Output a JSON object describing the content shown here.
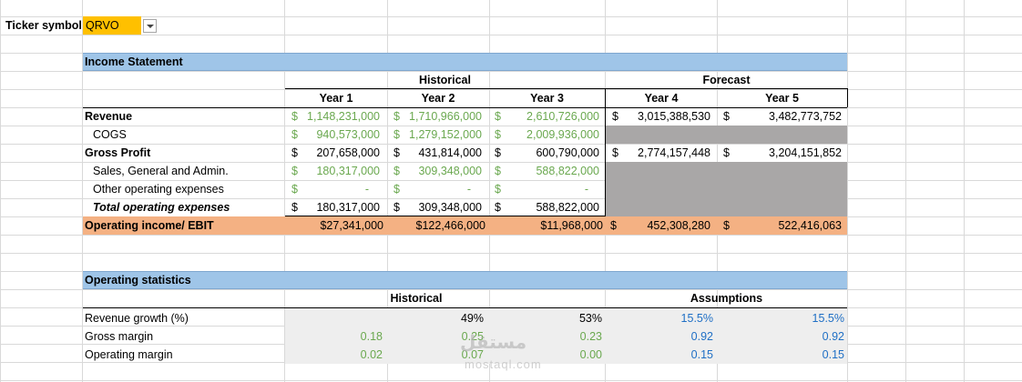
{
  "ticker": {
    "label": "Ticker symbol",
    "value": "QRVO"
  },
  "income": {
    "title": "Income Statement",
    "historical": "Historical",
    "forecast": "Forecast",
    "years": [
      "Year 1",
      "Year 2",
      "Year 3",
      "Year 4",
      "Year 5"
    ],
    "rows": [
      {
        "label": "Revenue",
        "vals": [
          "1,148,231,000",
          "1,710,966,000",
          "2,610,726,000",
          "3,015,388,530",
          "3,482,773,752"
        ]
      },
      {
        "label": "COGS",
        "vals": [
          "940,573,000",
          "1,279,152,000",
          "2,009,936,000",
          "",
          ""
        ]
      },
      {
        "label": "Gross Profit",
        "vals": [
          "207,658,000",
          "431,814,000",
          "600,790,000",
          "2,774,157,448",
          "3,204,151,852"
        ]
      },
      {
        "label": "Sales, General and Admin.",
        "vals": [
          "180,317,000",
          "309,348,000",
          "588,822,000",
          "",
          ""
        ]
      },
      {
        "label": "Other operating expenses",
        "vals": [
          "-",
          "-",
          "-",
          "",
          ""
        ]
      },
      {
        "label": "Total operating expenses",
        "vals": [
          "180,317,000",
          "309,348,000",
          "588,822,000",
          "",
          ""
        ]
      },
      {
        "label": "Operating income/ EBIT",
        "vals": [
          "$27,341,000",
          "$122,466,000",
          "$11,968,000",
          "452,308,280",
          "522,416,063"
        ]
      }
    ],
    "dollar": "$"
  },
  "stats": {
    "title": "Operating statistics",
    "historical": "Historical",
    "assumptions": "Assumptions",
    "rows": [
      {
        "label": "Revenue growth (%)",
        "vals": [
          "",
          "49%",
          "53%",
          "15.5%",
          "15.5%"
        ]
      },
      {
        "label": "Gross margin",
        "vals": [
          "0.18",
          "0.25",
          "0.23",
          "0.92",
          "0.92"
        ]
      },
      {
        "label": "Operating margin",
        "vals": [
          "0.02",
          "0.07",
          "0.00",
          "0.15",
          "0.15"
        ]
      }
    ]
  },
  "watermark": {
    "arabic": "مستقل",
    "latin": "mostaql.com"
  }
}
